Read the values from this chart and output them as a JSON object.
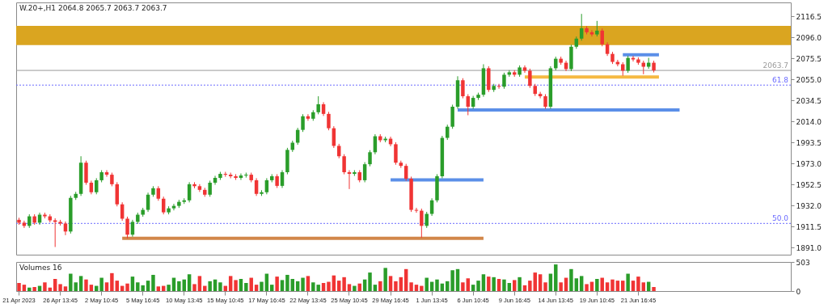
{
  "chart_data": [
    {
      "type": "candlestick",
      "title": "W.20+,H1  2064.8 2065.7 2063.7 2063.7",
      "categories": [
        null,
        null,
        null,
        null,
        null,
        null,
        null,
        null,
        null,
        null,
        null,
        null,
        null,
        null,
        null,
        null,
        null,
        null,
        null,
        null,
        null,
        null,
        null,
        null,
        null,
        null,
        null,
        null,
        null,
        null,
        null,
        null,
        null,
        null,
        null,
        null,
        null,
        null,
        null,
        null,
        null,
        null,
        null,
        null,
        null,
        null,
        null,
        null,
        null,
        null,
        null,
        null,
        null,
        null,
        null,
        null,
        null,
        null,
        null,
        null,
        null,
        null,
        null,
        null,
        null,
        null,
        null,
        null,
        null,
        null,
        null,
        null,
        null,
        null,
        null,
        null,
        null,
        null,
        null,
        null,
        null,
        null,
        null,
        null,
        null,
        null,
        null,
        null,
        null,
        null,
        null,
        null,
        null,
        null,
        null,
        null,
        null,
        null,
        null,
        null,
        null,
        null,
        null,
        null,
        null,
        null,
        null,
        null,
        null,
        null,
        null,
        null,
        null,
        null,
        null,
        null,
        null,
        null,
        null,
        null,
        null,
        null,
        null,
        null,
        null,
        null,
        null,
        null,
        null,
        null,
        null,
        null,
        null,
        null,
        null,
        null,
        null,
        null,
        null,
        null,
        null,
        null,
        null,
        null,
        null,
        null,
        null,
        null,
        null,
        null
      ],
      "ylim": [
        1884,
        2130
      ],
      "yticks": [
        2116.5,
        {
          "value": 2096.0,
          "label": "2096.0"
        },
        2075.5,
        {
          "value": 2055.0,
          "label": "2055.0"
        },
        2034.5,
        {
          "value": 2014.0,
          "label": "2014.0"
        },
        1993.5,
        {
          "value": 1973.0,
          "label": "1973.0"
        },
        1952.5,
        {
          "value": 1932.0,
          "label": "1932.0"
        },
        1911.5,
        {
          "value": 1891.0,
          "label": "1891.0"
        }
      ],
      "bands": [
        {
          "axis": "y",
          "from": 2088.4,
          "to": 2107.1,
          "color": "#daa520"
        }
      ],
      "ref_lines": [
        {
          "axis": "y",
          "value": 2063.7,
          "label": "2063.7",
          "color": "#9a9a9a",
          "line_style": "solid"
        },
        {
          "axis": "y",
          "value": 2049.4,
          "color": "#6b6bff",
          "line_style": "dotted"
        },
        {
          "axis": "y",
          "value": 1914.5,
          "color": "#6b6bff",
          "line_style": "dotted"
        }
      ],
      "annotations": [
        {
          "text": "61.8",
          "y": 2049.4
        },
        {
          "text": "50.0",
          "y": 1914.5
        }
      ],
      "series": [
        {
          "type": "line",
          "color": "#d2874a",
          "values": [
            null,
            null,
            null,
            null,
            null,
            null,
            null,
            null,
            null,
            null,
            null,
            null,
            null,
            null,
            null,
            null,
            null,
            null,
            null,
            null,
            1900.0,
            1900.0,
            1900.0,
            1900.0,
            1900.0,
            1900.0,
            1900.0,
            1900.0,
            1900.0,
            1900.0,
            1900.0,
            1900.0,
            1900.0,
            1900.0,
            1900.0,
            1900.0,
            1900.0,
            1900.0,
            1900.0,
            1900.0,
            1900.0,
            1900.0,
            1900.0,
            1900.0,
            1900.0,
            1900.0,
            1900.0,
            1900.0,
            1900.0,
            1900.0,
            1900.0,
            1900.0,
            1900.0,
            1900.0,
            1900.0,
            1900.0,
            1900.0,
            1900.0,
            1900.0,
            1900.0,
            1900.0,
            1900.0,
            1900.0,
            1900.0,
            1900.0,
            1900.0,
            1900.0,
            1900.0,
            1900.0,
            1900.0,
            1900.0,
            1900.0,
            1900.0,
            1900.0,
            1900.0,
            1900.0,
            1900.0,
            1900.0,
            1900.0,
            1900.0,
            1900.0,
            1900.0,
            1900.0,
            1900.0,
            1900.0,
            1900.0,
            1900.0,
            1900.0,
            1900.0,
            1900.0,
            1900.0,
            null,
            null,
            null,
            null,
            null,
            null,
            null,
            null,
            null,
            null,
            null,
            null,
            null,
            null,
            null,
            null,
            null,
            null,
            null,
            null,
            null,
            null,
            null,
            null,
            null,
            null,
            null,
            null,
            null,
            null,
            null,
            null,
            null,
            null,
            null,
            null,
            null,
            null,
            null,
            null,
            null,
            null,
            null,
            null,
            null,
            null,
            null,
            null,
            null,
            null,
            null,
            null,
            null,
            null,
            null,
            null,
            null,
            null,
            null
          ]
        },
        {
          "type": "line",
          "color": "#5b8fe8",
          "values": [
            null,
            null,
            null,
            null,
            null,
            null,
            null,
            null,
            null,
            null,
            null,
            null,
            null,
            null,
            null,
            null,
            null,
            null,
            null,
            null,
            null,
            null,
            null,
            null,
            null,
            null,
            null,
            null,
            null,
            null,
            null,
            null,
            null,
            null,
            null,
            null,
            null,
            null,
            null,
            null,
            null,
            null,
            null,
            null,
            null,
            null,
            null,
            null,
            null,
            null,
            null,
            null,
            null,
            null,
            null,
            null,
            null,
            null,
            null,
            null,
            null,
            null,
            null,
            null,
            null,
            null,
            null,
            null,
            null,
            null,
            null,
            null,
            1957.0,
            1957.0,
            1957.0,
            1957.0,
            1957.0,
            1957.0,
            1957.0,
            1957.0,
            1957.0,
            1957.0,
            1957.0,
            1957.0,
            1957.0,
            1957.0,
            1957.0,
            1957.0,
            1957.0,
            1957.0,
            1957.0,
            null,
            null,
            null,
            null,
            null,
            null,
            null,
            null,
            null,
            null,
            null,
            null,
            null,
            null,
            null,
            null,
            null,
            null,
            null,
            null,
            null,
            null,
            null,
            null,
            null,
            null,
            null,
            null,
            null,
            null,
            null,
            null,
            null,
            null,
            null,
            null,
            null,
            null,
            null,
            null,
            null,
            null,
            null,
            null,
            null,
            null,
            null,
            null,
            null,
            null,
            null,
            null,
            null,
            null,
            null,
            null,
            null,
            null,
            null
          ]
        },
        {
          "type": "line",
          "color": "#5b8fe8",
          "values": [
            null,
            null,
            null,
            null,
            null,
            null,
            null,
            null,
            null,
            null,
            null,
            null,
            null,
            null,
            null,
            null,
            null,
            null,
            null,
            null,
            null,
            null,
            null,
            null,
            null,
            null,
            null,
            null,
            null,
            null,
            null,
            null,
            null,
            null,
            null,
            null,
            null,
            null,
            null,
            null,
            null,
            null,
            null,
            null,
            null,
            null,
            null,
            null,
            null,
            null,
            null,
            null,
            null,
            null,
            null,
            null,
            null,
            null,
            null,
            null,
            null,
            null,
            null,
            null,
            null,
            null,
            null,
            null,
            null,
            null,
            null,
            null,
            null,
            null,
            null,
            null,
            null,
            null,
            null,
            null,
            null,
            null,
            null,
            null,
            null,
            2025.2,
            2025.2,
            2025.2,
            2025.2,
            2025.2,
            2025.2,
            2025.2,
            2025.2,
            2025.2,
            2025.2,
            2025.2,
            2025.2,
            2025.2,
            2025.2,
            2025.2,
            2025.2,
            2025.2,
            2025.2,
            2025.2,
            2025.2,
            2025.2,
            2025.2,
            2025.2,
            2025.2,
            2025.2,
            2025.2,
            2025.2,
            2025.2,
            2025.2,
            2025.2,
            2025.2,
            2025.2,
            2025.2,
            2025.2,
            2025.2,
            2025.2,
            2025.2,
            2025.2,
            2025.2,
            2025.2,
            2025.2,
            2025.2,
            2025.2,
            2025.2,
            null,
            null,
            null,
            null,
            null,
            null,
            null,
            null,
            null,
            null,
            null,
            null,
            null,
            null,
            null,
            null,
            null,
            null,
            null,
            null,
            null
          ]
        },
        {
          "type": "line",
          "color": "#5b8fe8",
          "values": [
            null,
            null,
            null,
            null,
            null,
            null,
            null,
            null,
            null,
            null,
            null,
            null,
            null,
            null,
            null,
            null,
            null,
            null,
            null,
            null,
            null,
            null,
            null,
            null,
            null,
            null,
            null,
            null,
            null,
            null,
            null,
            null,
            null,
            null,
            null,
            null,
            null,
            null,
            null,
            null,
            null,
            null,
            null,
            null,
            null,
            null,
            null,
            null,
            null,
            null,
            null,
            null,
            null,
            null,
            null,
            null,
            null,
            null,
            null,
            null,
            null,
            null,
            null,
            null,
            null,
            null,
            null,
            null,
            null,
            null,
            null,
            null,
            null,
            null,
            null,
            null,
            null,
            null,
            null,
            null,
            null,
            null,
            null,
            null,
            null,
            null,
            null,
            null,
            null,
            null,
            null,
            null,
            null,
            null,
            null,
            null,
            null,
            null,
            null,
            null,
            null,
            null,
            null,
            null,
            null,
            null,
            null,
            null,
            null,
            null,
            null,
            null,
            null,
            null,
            null,
            null,
            null,
            2079.0,
            2079.0,
            2079.0,
            2079.0,
            2079.0,
            2079.0,
            2079.0,
            2079.0,
            null,
            null,
            null,
            null,
            null,
            null,
            null,
            null,
            null,
            null,
            null,
            null,
            null,
            null,
            null,
            null,
            null,
            null,
            null,
            null,
            null,
            null,
            null,
            null,
            null
          ]
        },
        {
          "type": "line",
          "color": "#f5b942",
          "values": [
            null,
            null,
            null,
            null,
            null,
            null,
            null,
            null,
            null,
            null,
            null,
            null,
            null,
            null,
            null,
            null,
            null,
            null,
            null,
            null,
            null,
            null,
            null,
            null,
            null,
            null,
            null,
            null,
            null,
            null,
            null,
            null,
            null,
            null,
            null,
            null,
            null,
            null,
            null,
            null,
            null,
            null,
            null,
            null,
            null,
            null,
            null,
            null,
            null,
            null,
            null,
            null,
            null,
            null,
            null,
            null,
            null,
            null,
            null,
            null,
            null,
            null,
            null,
            null,
            null,
            null,
            null,
            null,
            null,
            null,
            null,
            null,
            null,
            null,
            null,
            null,
            null,
            null,
            null,
            null,
            null,
            null,
            null,
            null,
            null,
            null,
            null,
            null,
            null,
            null,
            null,
            null,
            null,
            null,
            null,
            null,
            null,
            null,
            2057.2,
            2057.2,
            2057.2,
            2057.2,
            2057.2,
            2057.2,
            2057.2,
            2057.2,
            2057.2,
            2057.2,
            2057.2,
            2057.2,
            2057.2,
            2057.2,
            2057.2,
            2057.2,
            2057.2,
            2057.2,
            2057.2,
            2057.2,
            2057.2,
            2057.2,
            2057.2,
            2057.2,
            2057.2,
            2057.2,
            2057.2,
            null,
            null,
            null,
            null,
            null,
            null,
            null,
            null,
            null,
            null,
            null,
            null,
            null,
            null,
            null,
            null,
            null,
            null,
            null,
            null,
            null,
            null,
            null,
            null,
            null
          ]
        }
      ],
      "ohlc": [
        [
          1918.0,
          1920.0,
          1913.2,
          1915.2
        ],
        [
          1915.2,
          1917.2,
          1910.1,
          1912.1
        ],
        [
          1912.1,
          1923.4,
          1910.1,
          1921.4
        ],
        [
          1921.4,
          1923.4,
          1913.2,
          1915.2
        ],
        [
          1915.2,
          1925.0,
          1913.2,
          1923.0
        ],
        [
          1923.0,
          1925.0,
          1919.4,
          1921.4
        ],
        [
          1921.4,
          1923.4,
          1915.5,
          1917.5
        ],
        [
          1917.5,
          1919.5,
          1891.5,
          1916.0
        ],
        [
          1916.0,
          1918.0,
          1912.4,
          1914.4
        ],
        [
          1914.4,
          1916.4,
          1903.0,
          1906.6
        ],
        [
          1906.6,
          1941.4,
          1904.6,
          1939.4
        ],
        [
          1939.4,
          1945.3,
          1937.4,
          1943.3
        ],
        [
          1943.3,
          1980.0,
          1941.3,
          1973.7
        ],
        [
          1973.7,
          1975.7,
          1952.2,
          1954.2
        ],
        [
          1954.2,
          1956.2,
          1942.9,
          1944.9
        ],
        [
          1944.9,
          1958.6,
          1942.9,
          1956.6
        ],
        [
          1956.6,
          1966.4,
          1954.6,
          1964.4
        ],
        [
          1964.4,
          1966.4,
          1960.0,
          1962.0
        ],
        [
          1962.0,
          1964.0,
          1950.7,
          1952.7
        ],
        [
          1952.7,
          1954.7,
          1931.1,
          1933.1
        ],
        [
          1933.1,
          1935.1,
          1917.1,
          1919.1
        ],
        [
          1919.1,
          1921.1,
          1900.0,
          1903.5
        ],
        [
          1903.5,
          1918.0,
          1901.5,
          1916.0
        ],
        [
          1916.0,
          1925.0,
          1914.0,
          1923.0
        ],
        [
          1923.0,
          1929.7,
          1921.0,
          1927.7
        ],
        [
          1927.7,
          1944.5,
          1925.7,
          1942.5
        ],
        [
          1942.5,
          1950.8,
          1940.5,
          1948.8
        ],
        [
          1948.8,
          1950.8,
          1936.6,
          1938.6
        ],
        [
          1938.6,
          1940.6,
          1923.3,
          1925.3
        ],
        [
          1925.3,
          1931.2,
          1923.3,
          1929.2
        ],
        [
          1929.2,
          1933.6,
          1927.2,
          1931.6
        ],
        [
          1931.6,
          1937.5,
          1929.6,
          1935.5
        ],
        [
          1935.5,
          1939.0,
          1933.5,
          1937.0
        ],
        [
          1937.0,
          1954.7,
          1935.0,
          1952.7
        ],
        [
          1952.7,
          1954.7,
          1948.8,
          1950.8
        ],
        [
          1950.8,
          1952.8,
          1945.2,
          1947.2
        ],
        [
          1947.2,
          1949.2,
          1940.5,
          1942.5
        ],
        [
          1942.5,
          1956.2,
          1940.5,
          1954.2
        ],
        [
          1954.2,
          1960.9,
          1952.2,
          1958.9
        ],
        [
          1958.9,
          1964.8,
          1956.9,
          1962.8
        ],
        [
          1962.8,
          1964.8,
          1960.0,
          1962.0
        ],
        [
          1962.0,
          1964.0,
          1958.5,
          1960.5
        ],
        [
          1960.5,
          1962.5,
          1956.9,
          1958.9
        ],
        [
          1958.9,
          1963.2,
          1956.9,
          1961.2
        ],
        [
          1961.2,
          1964.0,
          1959.2,
          1962.0
        ],
        [
          1962.0,
          1964.0,
          1954.6,
          1956.6
        ],
        [
          1956.6,
          1958.6,
          1941.3,
          1943.3
        ],
        [
          1943.3,
          1946.9,
          1941.3,
          1944.9
        ],
        [
          1944.9,
          1958.6,
          1942.9,
          1956.6
        ],
        [
          1956.6,
          1962.5,
          1954.6,
          1960.5
        ],
        [
          1960.5,
          1962.5,
          1949.1,
          1951.1
        ],
        [
          1951.1,
          1966.4,
          1949.1,
          1964.4
        ],
        [
          1964.4,
          1988.2,
          1962.4,
          1986.2
        ],
        [
          1986.2,
          1995.2,
          1984.2,
          1993.2
        ],
        [
          1993.2,
          2007.7,
          1991.2,
          2005.7
        ],
        [
          2005.7,
          2021.0,
          2003.7,
          2019.0
        ],
        [
          2019.0,
          2021.0,
          2014.6,
          2016.6
        ],
        [
          2016.6,
          2024.9,
          2014.6,
          2022.9
        ],
        [
          2022.9,
          2038.5,
          2020.9,
          2030.7
        ],
        [
          2030.7,
          2032.7,
          2019.3,
          2021.3
        ],
        [
          2021.3,
          2023.3,
          2005.3,
          2007.3
        ],
        [
          2007.3,
          2009.3,
          1988.1,
          1990.1
        ],
        [
          1990.1,
          1992.1,
          1978.0,
          1980.0
        ],
        [
          1980.0,
          1982.0,
          1962.4,
          1964.4
        ],
        [
          1964.4,
          1966.4,
          1948.0,
          1962.8
        ],
        [
          1962.8,
          1966.4,
          1960.8,
          1964.4
        ],
        [
          1964.4,
          1966.4,
          1954.6,
          1956.6
        ],
        [
          1956.6,
          1974.2,
          1954.6,
          1972.2
        ],
        [
          1972.2,
          1985.9,
          1970.2,
          1983.9
        ],
        [
          1983.9,
          2001.5,
          1981.9,
          1999.5
        ],
        [
          1999.5,
          2001.5,
          1993.6,
          1995.6
        ],
        [
          1995.6,
          1999.1,
          1993.6,
          1997.1
        ],
        [
          1997.1,
          1999.1,
          1989.7,
          1991.7
        ],
        [
          1991.7,
          1993.7,
          1971.7,
          1973.7
        ],
        [
          1973.7,
          1975.7,
          1968.6,
          1970.6
        ],
        [
          1970.6,
          1972.6,
          1956.1,
          1958.1
        ],
        [
          1958.1,
          1960.1,
          1925.7,
          1927.7
        ],
        [
          1927.7,
          1929.7,
          1924.9,
          1926.9
        ],
        [
          1926.9,
          1928.9,
          1900.5,
          1912.1
        ],
        [
          1912.1,
          1925.8,
          1910.1,
          1923.8
        ],
        [
          1923.8,
          1939.0,
          1921.8,
          1937.0
        ],
        [
          1937.0,
          1962.5,
          1935.0,
          1960.5
        ],
        [
          1960.5,
          1999.9,
          1958.5,
          1997.9
        ],
        [
          1997.9,
          2010.8,
          1995.9,
          2008.8
        ],
        [
          2008.8,
          2030.3,
          2006.8,
          2028.3
        ],
        [
          2028.3,
          2058.0,
          2026.3,
          2054.1
        ],
        [
          2054.1,
          2056.1,
          2036.5,
          2038.5
        ],
        [
          2038.5,
          2040.5,
          2020.0,
          2028.3
        ],
        [
          2028.3,
          2038.9,
          2026.3,
          2036.9
        ],
        [
          2036.9,
          2042.0,
          2034.9,
          2040.0
        ],
        [
          2040.0,
          2069.7,
          2038.0,
          2065.8
        ],
        [
          2065.8,
          2067.8,
          2042.7,
          2044.7
        ],
        [
          2044.7,
          2050.6,
          2042.7,
          2048.6
        ],
        [
          2048.6,
          2050.6,
          2045.8,
          2047.8
        ],
        [
          2047.8,
          2061.5,
          2045.8,
          2059.5
        ],
        [
          2059.5,
          2063.9,
          2057.5,
          2061.9
        ],
        [
          2061.9,
          2063.9,
          2057.5,
          2059.5
        ],
        [
          2059.5,
          2068.6,
          2057.5,
          2066.6
        ],
        [
          2066.6,
          2068.6,
          2061.4,
          2063.4
        ],
        [
          2063.4,
          2065.4,
          2046.6,
          2048.6
        ],
        [
          2048.6,
          2050.6,
          2038.8,
          2040.8
        ],
        [
          2040.8,
          2042.8,
          2036.5,
          2038.5
        ],
        [
          2038.5,
          2040.5,
          2026.3,
          2028.3
        ],
        [
          2028.3,
          2067.8,
          2026.3,
          2065.8
        ],
        [
          2065.8,
          2077.1,
          2063.8,
          2075.1
        ],
        [
          2075.1,
          2077.1,
          2069.2,
          2071.2
        ],
        [
          2071.2,
          2073.2,
          2063.0,
          2065.0
        ],
        [
          2065.0,
          2088.8,
          2063.0,
          2086.8
        ],
        [
          2086.8,
          2096.7,
          2084.8,
          2094.7
        ],
        [
          2094.7,
          2118.8,
          2092.7,
          2104.8
        ],
        [
          2104.8,
          2106.8,
          2098.9,
          2100.9
        ],
        [
          2100.9,
          2102.9,
          2096.8,
          2098.8
        ],
        [
          2098.8,
          2112.0,
          2096.8,
          2102.5
        ],
        [
          2102.5,
          2104.5,
          2087.2,
          2089.2
        ],
        [
          2089.2,
          2091.2,
          2077.8,
          2079.8
        ],
        [
          2079.8,
          2081.8,
          2070.0,
          2072.0
        ],
        [
          2072.0,
          2074.0,
          2067.7,
          2069.7
        ],
        [
          2069.7,
          2071.7,
          2058.5,
          2063.4
        ],
        [
          2063.4,
          2078.0,
          2061.4,
          2075.9
        ],
        [
          2075.9,
          2077.9,
          2072.4,
          2074.4
        ],
        [
          2074.4,
          2076.4,
          2069.2,
          2071.2
        ],
        [
          2071.2,
          2073.2,
          2060.0,
          2067.3
        ],
        [
          2067.3,
          2076.0,
          2065.3,
          2071.2
        ],
        [
          2071.2,
          2073.2,
          2061.7,
          2063.7
        ],
        null,
        null,
        null,
        null,
        null,
        null,
        null,
        null,
        null,
        null,
        null,
        null,
        null,
        null,
        null,
        null,
        null,
        null,
        null,
        null,
        null,
        null,
        null,
        null,
        null,
        null
      ],
      "colors": [
        "#f03434",
        "#f03434",
        "#2a9d2a",
        "#f03434",
        "#2a9d2a",
        "#f03434",
        "#f03434",
        "#f03434",
        "#f03434",
        "#f03434",
        "#2a9d2a",
        "#2a9d2a",
        "#2a9d2a",
        "#f03434",
        "#f03434",
        "#2a9d2a",
        "#2a9d2a",
        "#f03434",
        "#f03434",
        "#f03434",
        "#f03434",
        "#f03434",
        "#2a9d2a",
        "#2a9d2a",
        "#2a9d2a",
        "#2a9d2a",
        "#2a9d2a",
        "#f03434",
        "#f03434",
        "#2a9d2a",
        "#2a9d2a",
        "#2a9d2a",
        "#2a9d2a",
        "#2a9d2a",
        "#f03434",
        "#f03434",
        "#f03434",
        "#2a9d2a",
        "#2a9d2a",
        "#2a9d2a",
        "#f03434",
        "#f03434",
        "#f03434",
        "#2a9d2a",
        "#2a9d2a",
        "#f03434",
        "#f03434",
        "#2a9d2a",
        "#2a9d2a",
        "#2a9d2a",
        "#f03434",
        "#2a9d2a",
        "#2a9d2a",
        "#2a9d2a",
        "#2a9d2a",
        "#2a9d2a",
        "#f03434",
        "#2a9d2a",
        "#2a9d2a",
        "#f03434",
        "#f03434",
        "#f03434",
        "#f03434",
        "#f03434",
        "#f03434",
        "#2a9d2a",
        "#f03434",
        "#2a9d2a",
        "#2a9d2a",
        "#2a9d2a",
        "#f03434",
        "#2a9d2a",
        "#f03434",
        "#f03434",
        "#f03434",
        "#f03434",
        "#f03434",
        "#f03434",
        "#f03434",
        "#2a9d2a",
        "#2a9d2a",
        "#2a9d2a",
        "#2a9d2a",
        "#2a9d2a",
        "#2a9d2a",
        "#2a9d2a",
        "#f03434",
        "#f03434",
        "#2a9d2a",
        "#2a9d2a",
        "#2a9d2a",
        "#f03434",
        "#2a9d2a",
        "#f03434",
        "#2a9d2a",
        "#2a9d2a",
        "#f03434",
        "#2a9d2a",
        "#f03434",
        "#f03434",
        "#f03434",
        "#f03434",
        "#f03434",
        "#2a9d2a",
        "#2a9d2a",
        "#f03434",
        "#f03434",
        "#2a9d2a",
        "#2a9d2a",
        "#2a9d2a",
        "#f03434",
        "#f03434",
        "#2a9d2a",
        "#f03434",
        "#f03434",
        "#f03434",
        "#f03434",
        "#f03434",
        "#2a9d2a",
        "#f03434",
        "#f03434",
        "#f03434",
        "#2a9d2a",
        "#f03434",
        null,
        null,
        null,
        null,
        null,
        null,
        null,
        null,
        null,
        null,
        null,
        null,
        null,
        null,
        null,
        null,
        null,
        null,
        null,
        null,
        null,
        null,
        null,
        null,
        null,
        null
      ]
    },
    {
      "type": "bar",
      "title": "Volumes 16",
      "ylim": [
        0,
        503
      ],
      "yticks": [
        0,
        503
      ],
      "categories": [
        "21 Apr 2023",
        null,
        null,
        null,
        null,
        null,
        null,
        null,
        "26 Apr 13:45",
        null,
        null,
        null,
        null,
        null,
        null,
        null,
        "2 May 10:45",
        null,
        null,
        null,
        null,
        null,
        null,
        null,
        "5 May 16:45",
        null,
        null,
        null,
        null,
        null,
        null,
        null,
        "10 May 13:45",
        null,
        null,
        null,
        null,
        null,
        null,
        null,
        "15 May 10:45",
        null,
        null,
        null,
        null,
        null,
        null,
        null,
        "17 May 16:45",
        null,
        null,
        null,
        null,
        null,
        null,
        null,
        "22 May 13:45",
        null,
        null,
        null,
        null,
        null,
        null,
        null,
        "25 May 10:45",
        null,
        null,
        null,
        null,
        null,
        null,
        null,
        "29 May 16:45",
        null,
        null,
        null,
        null,
        null,
        null,
        null,
        "1 Jun 13:45",
        null,
        null,
        null,
        null,
        null,
        null,
        null,
        "6 Jun 10:45",
        null,
        null,
        null,
        null,
        null,
        null,
        null,
        "9 Jun 16:45",
        null,
        null,
        null,
        null,
        null,
        null,
        null,
        "14 Jun 13:45",
        null,
        null,
        null,
        null,
        null,
        null,
        null,
        "19 Jun 10:45",
        null,
        null,
        null,
        null,
        null,
        null,
        null,
        "21 Jun 16:45",
        null,
        null,
        null,
        null,
        null,
        null,
        null,
        null,
        null,
        null,
        null,
        null,
        null,
        null,
        null,
        null,
        null,
        null,
        null,
        null,
        null,
        null,
        null,
        null,
        null,
        null,
        null,
        null,
        null
      ],
      "values": [
        140,
        110,
        60,
        70,
        90,
        150,
        60,
        210,
        120,
        80,
        300,
        150,
        260,
        200,
        110,
        90,
        230,
        150,
        310,
        180,
        90,
        130,
        250,
        150,
        100,
        180,
        280,
        80,
        90,
        110,
        230,
        170,
        200,
        290,
        120,
        260,
        90,
        170,
        200,
        150,
        90,
        260,
        190,
        210,
        140,
        230,
        110,
        160,
        300,
        110,
        250,
        190,
        280,
        210,
        170,
        230,
        260,
        150,
        110,
        140,
        160,
        270,
        180,
        240,
        120,
        90,
        130,
        200,
        320,
        110,
        170,
        400,
        260,
        170,
        240,
        380,
        150,
        110,
        90,
        230,
        160,
        200,
        130,
        170,
        360,
        380,
        150,
        220,
        110,
        180,
        290,
        250,
        240,
        210,
        200,
        140,
        190,
        240,
        100,
        180,
        320,
        290,
        150,
        300,
        460,
        150,
        230,
        380,
        220,
        260,
        120,
        160,
        210,
        230,
        150,
        200,
        180,
        180,
        300,
        180,
        250,
        150,
        160,
        70,
        null,
        null,
        null,
        null,
        null,
        null,
        null,
        null,
        null,
        null,
        null,
        null,
        null,
        null,
        null,
        null,
        null,
        null,
        null,
        null,
        null,
        null,
        null,
        null,
        null,
        null
      ],
      "colors": [
        "#f03434",
        "#f03434",
        "#2a9d2a",
        "#f03434",
        "#2a9d2a",
        "#f03434",
        "#f03434",
        "#f03434",
        "#f03434",
        "#f03434",
        "#2a9d2a",
        "#2a9d2a",
        "#2a9d2a",
        "#f03434",
        "#f03434",
        "#2a9d2a",
        "#2a9d2a",
        "#f03434",
        "#f03434",
        "#f03434",
        "#f03434",
        "#f03434",
        "#2a9d2a",
        "#2a9d2a",
        "#2a9d2a",
        "#2a9d2a",
        "#2a9d2a",
        "#f03434",
        "#f03434",
        "#2a9d2a",
        "#2a9d2a",
        "#2a9d2a",
        "#2a9d2a",
        "#2a9d2a",
        "#f03434",
        "#f03434",
        "#f03434",
        "#2a9d2a",
        "#2a9d2a",
        "#2a9d2a",
        "#f03434",
        "#f03434",
        "#f03434",
        "#2a9d2a",
        "#2a9d2a",
        "#f03434",
        "#f03434",
        "#2a9d2a",
        "#2a9d2a",
        "#2a9d2a",
        "#f03434",
        "#2a9d2a",
        "#2a9d2a",
        "#2a9d2a",
        "#2a9d2a",
        "#2a9d2a",
        "#f03434",
        "#2a9d2a",
        "#2a9d2a",
        "#f03434",
        "#f03434",
        "#f03434",
        "#f03434",
        "#f03434",
        "#f03434",
        "#2a9d2a",
        "#f03434",
        "#2a9d2a",
        "#2a9d2a",
        "#2a9d2a",
        "#f03434",
        "#2a9d2a",
        "#f03434",
        "#f03434",
        "#f03434",
        "#f03434",
        "#f03434",
        "#f03434",
        "#f03434",
        "#2a9d2a",
        "#2a9d2a",
        "#2a9d2a",
        "#2a9d2a",
        "#2a9d2a",
        "#2a9d2a",
        "#2a9d2a",
        "#f03434",
        "#f03434",
        "#2a9d2a",
        "#2a9d2a",
        "#2a9d2a",
        "#f03434",
        "#2a9d2a",
        "#f03434",
        "#2a9d2a",
        "#2a9d2a",
        "#f03434",
        "#2a9d2a",
        "#f03434",
        "#f03434",
        "#f03434",
        "#f03434",
        "#f03434",
        "#2a9d2a",
        "#2a9d2a",
        "#f03434",
        "#f03434",
        "#2a9d2a",
        "#2a9d2a",
        "#2a9d2a",
        "#f03434",
        "#f03434",
        "#2a9d2a",
        "#f03434",
        "#f03434",
        "#f03434",
        "#f03434",
        "#f03434",
        "#2a9d2a",
        "#f03434",
        "#f03434",
        "#f03434",
        "#2a9d2a",
        "#f03434",
        null,
        null,
        null,
        null,
        null,
        null,
        null,
        null,
        null,
        null,
        null,
        null,
        null,
        null,
        null,
        null,
        null,
        null,
        null,
        null,
        null,
        null,
        null,
        null,
        null,
        null
      ]
    }
  ]
}
